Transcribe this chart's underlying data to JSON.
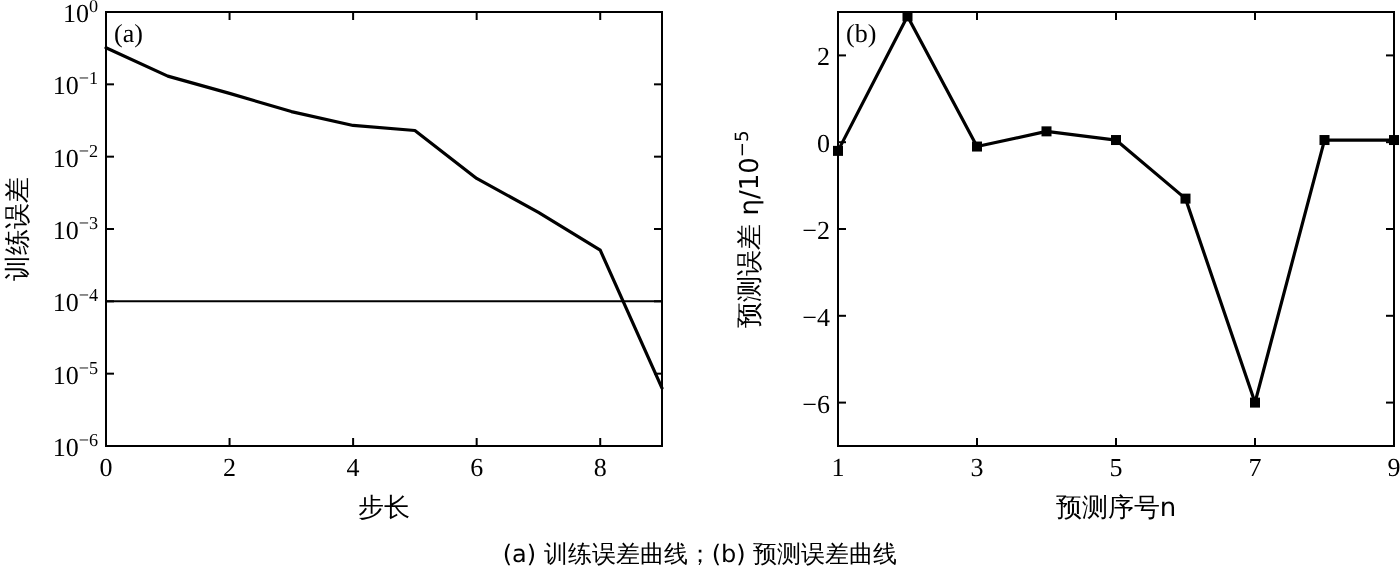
{
  "chart_data": [
    {
      "type": "line",
      "xlabel": "步长",
      "ylabel": "训练误差",
      "log": "y",
      "marker": "none",
      "line_style": "solid",
      "x": [
        0,
        1,
        2,
        3,
        4,
        5,
        6,
        7,
        8,
        9
      ],
      "series": [
        {
          "color": "#000000",
          "values": [
            0.32,
            0.13,
            0.075,
            0.042,
            0.027,
            0.023,
            0.005,
            0.0017,
            0.00051,
            6.3e-06
          ]
        }
      ],
      "xlim": [
        0,
        9
      ],
      "xticks": [
        0,
        2,
        4,
        6,
        8
      ],
      "ylim": [
        1e-06,
        1
      ],
      "yticks": [
        {
          "value": 1e-06,
          "label": "10$^{−6}$"
        },
        {
          "value": 1e-05,
          "label": "10$^{−5}$"
        },
        {
          "value": 0.0001,
          "label": "10$^{−4}$"
        },
        {
          "value": 0.001,
          "label": "10$^{−3}$"
        },
        {
          "value": 0.01,
          "label": "10$^{−2}$"
        },
        {
          "value": 0.1,
          "label": "10$^{−1}$"
        },
        {
          "value": 1,
          "label": "10$^{0}$"
        }
      ],
      "ref_lines": [
        {
          "axis": "y",
          "value": 0.0001,
          "color": "#000000"
        }
      ],
      "annotations": [
        "(a)",
        "(a)  训练误差曲线；(b)  预测误差曲线"
      ]
    },
    {
      "type": "line",
      "xlabel": "预测序号n",
      "ylabel": "预测误差 η/10$^{−5}$",
      "marker": "square",
      "line_style": "solid",
      "x": [
        1,
        2,
        3,
        4,
        5,
        6,
        7,
        8,
        9
      ],
      "series": [
        {
          "color": "#000000",
          "values": [
            -0.2,
            2.9,
            -0.1,
            0.25,
            0.05,
            -1.3,
            -6.0,
            0.05,
            0.05
          ]
        }
      ],
      "xlim": [
        1,
        9
      ],
      "xticks": [
        1,
        3,
        5,
        7,
        9
      ],
      "ylim": [
        -7,
        3
      ],
      "yticks": [
        -6,
        -4,
        -2,
        0,
        2
      ],
      "annotations": [
        "(b)"
      ]
    }
  ]
}
